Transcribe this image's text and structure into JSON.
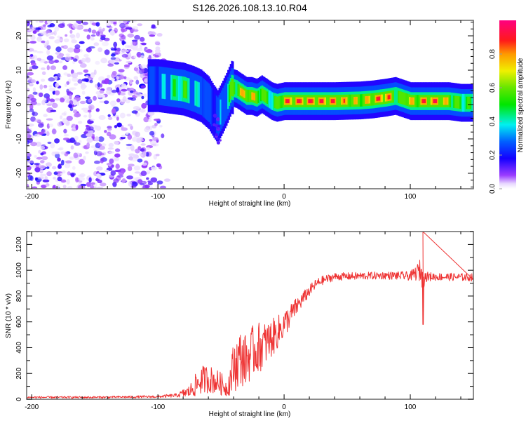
{
  "title": "S126.2026.108.13.10.R04",
  "chart_data": [
    {
      "type": "heatmap",
      "name": "spectrogram",
      "xlabel": "Height of straight line (km)",
      "ylabel": "Frequency (Hz)",
      "xlim": [
        -204,
        150
      ],
      "ylim": [
        -24.5,
        24.5
      ],
      "xticks": [
        -200,
        -100,
        0,
        100
      ],
      "yticks": [
        -20,
        -10,
        0,
        10,
        20
      ],
      "xtick_labels": [
        "-200",
        "-100",
        "0",
        "100"
      ],
      "ytick_labels": [
        "-20",
        "-10",
        "0",
        "10",
        "20"
      ],
      "noise_region_x": [
        -204,
        -92
      ],
      "ridge": {
        "description": "Dominant signal frequency track (Hz) vs height (km)",
        "x": [
          -108,
          -100,
          -90,
          -80,
          -72,
          -66,
          -60,
          -56,
          -53,
          -50,
          -46,
          -42,
          -38,
          -34,
          -30,
          -26,
          -22,
          -18,
          -14,
          -10,
          -6,
          0,
          20,
          40,
          60,
          70,
          80,
          88,
          92,
          96,
          100,
          104,
          110,
          120,
          130,
          140,
          150
        ],
        "y": [
          5.5,
          5.5,
          5,
          4.5,
          3.5,
          2.5,
          0.5,
          -2,
          -3.5,
          -1.5,
          1.5,
          5,
          4.5,
          3.5,
          2.5,
          2.5,
          2,
          3,
          2,
          1,
          0.5,
          1,
          1,
          1,
          1.2,
          1.5,
          2,
          2.5,
          2,
          1.5,
          1,
          1,
          1,
          1,
          1,
          0.5,
          0.5
        ],
        "amplitude": [
          0.25,
          0.3,
          0.45,
          0.55,
          0.4,
          0.35,
          0.3,
          0.25,
          0.3,
          0.35,
          0.4,
          0.6,
          0.7,
          0.75,
          0.8,
          0.75,
          0.7,
          0.65,
          0.55,
          0.5,
          0.6,
          0.85,
          0.9,
          0.85,
          0.7,
          0.8,
          0.9,
          0.65,
          0.55,
          0.8,
          0.75,
          0.7,
          0.85,
          0.9,
          0.7,
          0.55,
          0.5
        ]
      },
      "colorbar": {
        "label": "Normalized spectral amplitude",
        "range": [
          0.0,
          1.0
        ],
        "ticks": [
          0.0,
          0.2,
          0.4,
          0.6,
          0.8
        ],
        "tick_labels": [
          "0.0",
          "0.2",
          "0.4",
          "0.6",
          "0.8"
        ],
        "colormap": "rainbow (white-violet-blue-cyan-green-yellow-red-magenta)"
      }
    },
    {
      "type": "line",
      "name": "snr",
      "xlabel": "Height of straight line (km)",
      "ylabel": "SNR (10 * v/v)",
      "xlim": [
        -204,
        150
      ],
      "ylim": [
        0,
        1300
      ],
      "xticks": [
        -200,
        -100,
        0,
        100
      ],
      "yticks": [
        0,
        200,
        400,
        600,
        800,
        1000,
        1200
      ],
      "xtick_labels": [
        "-200",
        "-100",
        "0",
        "100"
      ],
      "ytick_labels": [
        "0",
        "200",
        "400",
        "600",
        "800",
        "1000",
        "1200"
      ],
      "color": "#ee3333",
      "series": [
        {
          "name": "SNR",
          "x": [
            -204,
            -150,
            -100,
            -85,
            -75,
            -70,
            -65,
            -60,
            -55,
            -50,
            -45,
            -40,
            -35,
            -30,
            -25,
            -20,
            -15,
            -10,
            -5,
            0,
            5,
            10,
            15,
            20,
            25,
            30,
            40,
            60,
            80,
            100,
            105,
            108,
            110,
            112,
            120,
            150
          ],
          "mean": [
            15,
            15,
            20,
            30,
            60,
            110,
            150,
            160,
            140,
            120,
            80,
            250,
            320,
            300,
            370,
            400,
            430,
            470,
            520,
            580,
            650,
            720,
            780,
            840,
            890,
            920,
            950,
            955,
            960,
            955,
            980,
            1000,
            960,
            950,
            950,
            945
          ],
          "noise_amp": [
            8,
            8,
            10,
            15,
            50,
            90,
            110,
            110,
            100,
            90,
            60,
            200,
            220,
            200,
            200,
            200,
            170,
            150,
            130,
            110,
            90,
            70,
            55,
            45,
            40,
            35,
            30,
            30,
            30,
            35,
            60,
            90,
            120,
            40,
            30,
            30
          ]
        }
      ],
      "annotations": [
        {
          "x": 110,
          "value_max": 1300,
          "note": "spike"
        },
        {
          "x": 110,
          "value_min": 580,
          "note": "dip"
        }
      ]
    }
  ]
}
